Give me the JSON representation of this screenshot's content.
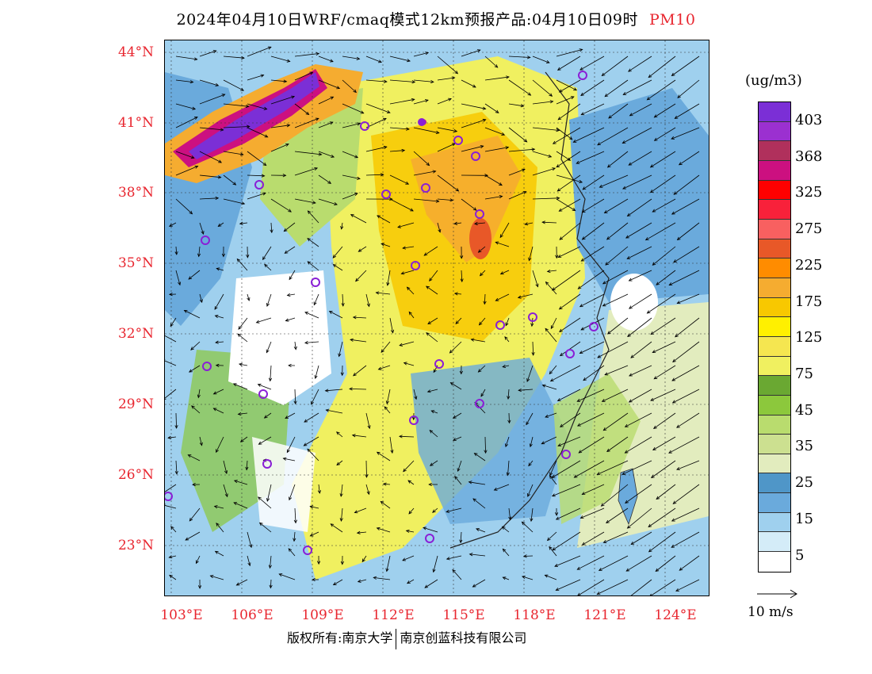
{
  "title": {
    "main": "2024年04月10日WRF/cmaq模式12km预报产品:04月10日09时",
    "pollutant": "PM10"
  },
  "map": {
    "lat_labels": [
      "44°N",
      "41°N",
      "38°N",
      "35°N",
      "32°N",
      "29°N",
      "26°N",
      "23°N"
    ],
    "lon_labels": [
      "103°E",
      "106°E",
      "109°E",
      "112°E",
      "115°E",
      "118°E",
      "121°E",
      "124°E"
    ],
    "icons": [
      "city-marker-icon",
      "wind-arrow-icon"
    ]
  },
  "legend": {
    "unit": "(ug/m3)",
    "ticks": [
      "403",
      "368",
      "325",
      "275",
      "225",
      "175",
      "125",
      "75",
      "45",
      "35",
      "25",
      "15",
      "5"
    ],
    "colors": [
      "#7b2fd6",
      "#9b30d0",
      "#b0305c",
      "#cc1080",
      "#ff0000",
      "#f8213a",
      "#f86060",
      "#e85828",
      "#ff8c00",
      "#f5ac30",
      "#f8c800",
      "#fff000",
      "#f5e650",
      "#f0f060",
      "#6aa832",
      "#8cc83c",
      "#b9dc6e",
      "#cce090",
      "#e2ecbe",
      "#4f96c8",
      "#6aaadc",
      "#9fd0ee",
      "#d4ecf8",
      "#ffffff"
    ]
  },
  "wind_vector": {
    "label": "10 m/s"
  },
  "footer": {
    "left": "版权所有:南京大学",
    "right": "南京创蓝科技有限公司"
  }
}
